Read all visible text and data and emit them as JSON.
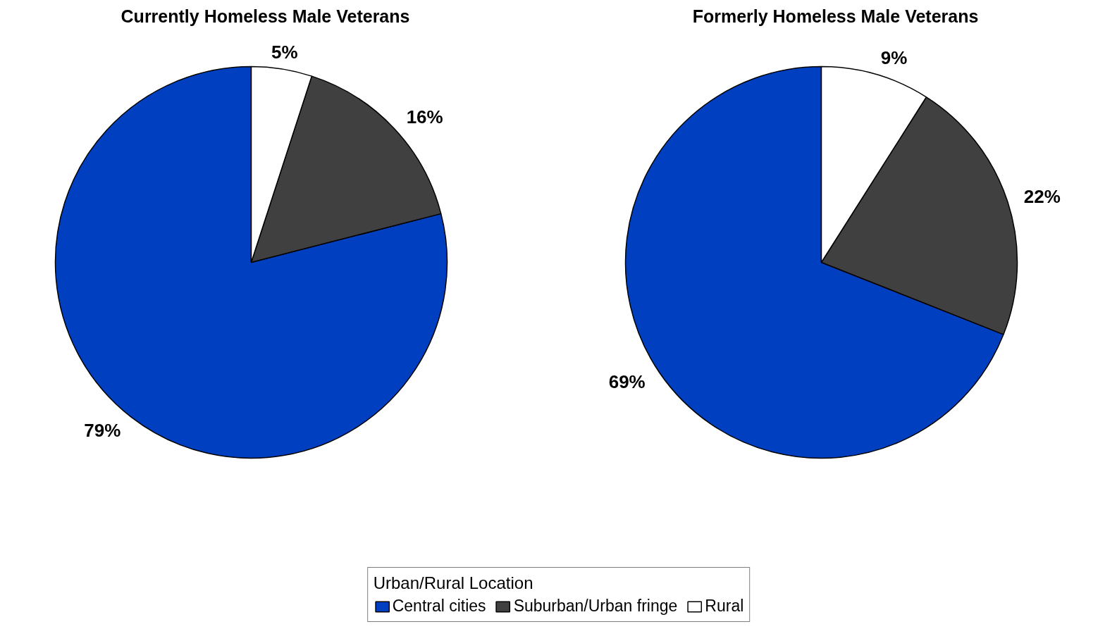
{
  "chart_data": [
    {
      "type": "pie",
      "title": "Currently Homeless Male Veterans",
      "categories": [
        "Central cities",
        "Suburban/Urban fringe",
        "Rural"
      ],
      "values": [
        79,
        16,
        5
      ],
      "colors": [
        "#0040c0",
        "#404040",
        "#ffffff"
      ],
      "value_labels": [
        "79%",
        "16%",
        "5%"
      ],
      "legend": "bottom",
      "legend_title": "Urban/Rural Location"
    },
    {
      "type": "pie",
      "title": "Formerly Homeless Male Veterans",
      "values": [
        69,
        22,
        9
      ],
      "colors": [
        "#0040c0",
        "#404040",
        "#ffffff"
      ],
      "value_labels": [
        "69%",
        "22%",
        "9%"
      ]
    }
  ]
}
